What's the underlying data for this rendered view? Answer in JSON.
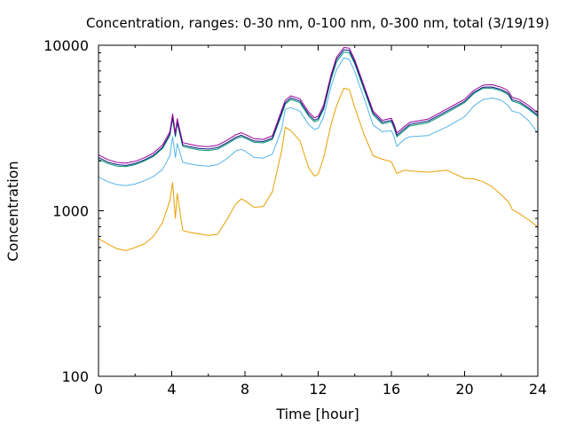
{
  "chart_data": {
    "type": "line",
    "title": "Concentration, ranges: 0-30 nm, 0-100 nm, 0-300 nm, total (3/19/19)",
    "xlabel": "Time [hour]",
    "ylabel": "Concentration",
    "xlim": [
      0,
      24
    ],
    "ylim": [
      100,
      10000
    ],
    "yscale": "log",
    "grid": false,
    "legend": "none",
    "x_ticks": [
      0,
      4,
      8,
      12,
      16,
      20,
      24
    ],
    "y_ticks": [
      100,
      1000,
      10000
    ],
    "x": [
      0,
      0.5,
      1,
      1.5,
      2,
      2.5,
      3,
      3.5,
      3.9,
      4.05,
      4.2,
      4.3,
      4.6,
      5,
      5.5,
      6,
      6.5,
      7,
      7.5,
      7.8,
      8,
      8.5,
      9,
      9.5,
      10,
      10.2,
      10.5,
      11,
      11.5,
      11.8,
      12,
      12.3,
      12.7,
      13,
      13.4,
      13.7,
      14,
      14.5,
      15,
      15.5,
      16,
      16.15,
      16.3,
      16.7,
      17,
      18,
      19,
      20,
      20.5,
      21,
      21.5,
      22,
      22.3,
      22.4,
      22.6,
      23,
      23.5,
      24
    ],
    "series": [
      {
        "color": "#e6a000",
        "values": [
          680,
          630,
          590,
          575,
          600,
          630,
          700,
          850,
          1150,
          1480,
          900,
          1270,
          760,
          740,
          725,
          710,
          720,
          880,
          1100,
          1180,
          1150,
          1050,
          1060,
          1300,
          2300,
          3200,
          3050,
          2650,
          1800,
          1620,
          1660,
          2100,
          3300,
          4300,
          5500,
          5400,
          4200,
          2900,
          2150,
          2050,
          1980,
          1820,
          1680,
          1760,
          1740,
          1710,
          1760,
          1570,
          1560,
          1500,
          1400,
          1250,
          1160,
          1140,
          1020,
          960,
          880,
          800
        ]
      },
      {
        "color": "#56b4e9",
        "values": [
          1600,
          1500,
          1440,
          1420,
          1450,
          1520,
          1610,
          1780,
          2150,
          2800,
          2100,
          2550,
          1960,
          1920,
          1880,
          1860,
          1900,
          2060,
          2300,
          2350,
          2300,
          2100,
          2080,
          2200,
          3100,
          4100,
          4200,
          4000,
          3300,
          3100,
          3150,
          3700,
          5600,
          7100,
          8400,
          8200,
          6900,
          4800,
          3300,
          3000,
          3050,
          2800,
          2450,
          2700,
          2800,
          2850,
          3200,
          3700,
          4300,
          4700,
          4800,
          4650,
          4400,
          4300,
          4000,
          3900,
          3500,
          2950
        ]
      },
      {
        "color": "#009e73",
        "values": [
          2050,
          1930,
          1860,
          1850,
          1900,
          2000,
          2130,
          2380,
          2850,
          3600,
          2800,
          3400,
          2450,
          2390,
          2330,
          2310,
          2360,
          2520,
          2730,
          2800,
          2750,
          2590,
          2570,
          2700,
          3800,
          4400,
          4700,
          4500,
          3700,
          3450,
          3520,
          4100,
          6200,
          7900,
          9100,
          9000,
          7700,
          5400,
          3800,
          3350,
          3450,
          3150,
          2800,
          3050,
          3250,
          3400,
          3900,
          4500,
          5100,
          5500,
          5500,
          5300,
          5100,
          5000,
          4600,
          4450,
          4100,
          3700
        ]
      },
      {
        "color": "#0a1a7a",
        "values": [
          2100,
          1970,
          1900,
          1880,
          1930,
          2030,
          2160,
          2420,
          2900,
          3700,
          2850,
          3480,
          2500,
          2440,
          2380,
          2360,
          2410,
          2570,
          2780,
          2860,
          2800,
          2640,
          2620,
          2750,
          3900,
          4500,
          4800,
          4600,
          3800,
          3530,
          3600,
          4200,
          6400,
          8200,
          9400,
          9300,
          7900,
          5550,
          3900,
          3420,
          3520,
          3220,
          2860,
          3120,
          3320,
          3480,
          3980,
          4580,
          5180,
          5580,
          5600,
          5400,
          5200,
          5080,
          4700,
          4550,
          4180,
          3780
        ]
      },
      {
        "color": "#990099",
        "values": [
          2180,
          2040,
          1960,
          1940,
          1990,
          2090,
          2230,
          2500,
          3000,
          3850,
          2950,
          3600,
          2580,
          2520,
          2460,
          2440,
          2490,
          2660,
          2880,
          2960,
          2900,
          2730,
          2700,
          2840,
          4050,
          4650,
          4950,
          4750,
          3920,
          3650,
          3720,
          4350,
          6600,
          8450,
          9700,
          9600,
          8150,
          5700,
          4000,
          3520,
          3620,
          3320,
          2950,
          3220,
          3420,
          3580,
          4100,
          4720,
          5330,
          5740,
          5780,
          5580,
          5380,
          5250,
          4850,
          4700,
          4320,
          3900
        ]
      }
    ]
  }
}
